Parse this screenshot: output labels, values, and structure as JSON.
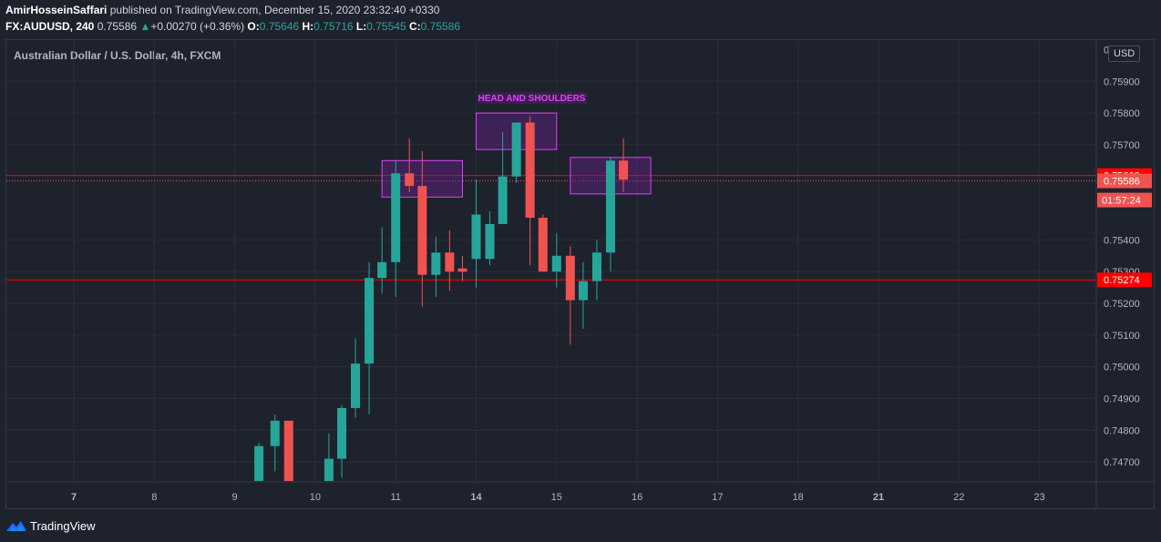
{
  "header": {
    "author": "AmirHosseinSaffari",
    "published_text": "published on TradingView.com, December 15, 2020 23:32:40 +0330",
    "symbol": "FX:AUDUSD, 240",
    "last": "0.75586",
    "change_arrow": "▲",
    "change": "+0.00270 (+0.36%)",
    "o_label": "O:",
    "o_value": "0.75646",
    "h_label": "H:",
    "h_value": "0.75716",
    "l_label": "L:",
    "l_value": "0.75545",
    "c_label": "C:",
    "c_value": "0.75586"
  },
  "chart_data": {
    "type": "candlestick",
    "title": "Australian Dollar / U.S. Dollar, 4h, FXCM",
    "currency": "USD",
    "ylim": [
      0.7464,
      0.7603
    ],
    "y_ticks": [
      "0.75900",
      "0.75800",
      "0.75700",
      "0.75400",
      "0.75300",
      "0.75200",
      "0.75100",
      "0.75000",
      "0.74900",
      "0.74800",
      "0.74700"
    ],
    "y_tick_partial": "0.76000",
    "x_ticks": [
      {
        "label": "7",
        "x": 7.0,
        "bold": true
      },
      {
        "label": "8",
        "x": 8.0,
        "bold": false
      },
      {
        "label": "9",
        "x": 9.0,
        "bold": false
      },
      {
        "label": "10",
        "x": 10.0,
        "bold": false
      },
      {
        "label": "11",
        "x": 11.0,
        "bold": false
      },
      {
        "label": "14",
        "x": 12.0,
        "bold": true
      },
      {
        "label": "15",
        "x": 13.0,
        "bold": false
      },
      {
        "label": "16",
        "x": 14.0,
        "bold": false
      },
      {
        "label": "17",
        "x": 15.0,
        "bold": false
      },
      {
        "label": "18",
        "x": 16.0,
        "bold": false
      },
      {
        "label": "21",
        "x": 17.0,
        "bold": true
      },
      {
        "label": "22",
        "x": 18.0,
        "bold": false
      },
      {
        "label": "23",
        "x": 19.0,
        "bold": false
      }
    ],
    "candles": [
      {
        "t": 9.3,
        "o": 0.7464,
        "h": 0.7476,
        "l": 0.7464,
        "c": 0.7475
      },
      {
        "t": 9.5,
        "o": 0.7475,
        "h": 0.7485,
        "l": 0.7467,
        "c": 0.7483
      },
      {
        "t": 9.67,
        "o": 0.7483,
        "h": 0.7483,
        "l": 0.7464,
        "c": 0.7464
      },
      {
        "t": 10.17,
        "o": 0.7464,
        "h": 0.7479,
        "l": 0.7464,
        "c": 0.7471
      },
      {
        "t": 10.33,
        "o": 0.7471,
        "h": 0.7488,
        "l": 0.7465,
        "c": 0.7487
      },
      {
        "t": 10.5,
        "o": 0.7487,
        "h": 0.7509,
        "l": 0.7484,
        "c": 0.7501
      },
      {
        "t": 10.67,
        "o": 0.7501,
        "h": 0.7533,
        "l": 0.7485,
        "c": 0.7528
      },
      {
        "t": 10.83,
        "o": 0.7528,
        "h": 0.7544,
        "l": 0.7523,
        "c": 0.7533
      },
      {
        "t": 11.0,
        "o": 0.7533,
        "h": 0.7565,
        "l": 0.7522,
        "c": 0.7561
      },
      {
        "t": 11.17,
        "o": 0.7561,
        "h": 0.7572,
        "l": 0.7555,
        "c": 0.7557
      },
      {
        "t": 11.33,
        "o": 0.7557,
        "h": 0.7568,
        "l": 0.7519,
        "c": 0.7529
      },
      {
        "t": 11.5,
        "o": 0.7529,
        "h": 0.7541,
        "l": 0.7522,
        "c": 0.7536
      },
      {
        "t": 11.67,
        "o": 0.7536,
        "h": 0.7543,
        "l": 0.7524,
        "c": 0.753
      },
      {
        "t": 11.83,
        "o": 0.7531,
        "h": 0.7535,
        "l": 0.7527,
        "c": 0.753
      },
      {
        "t": 12.0,
        "o": 0.7534,
        "h": 0.7559,
        "l": 0.7525,
        "c": 0.7548
      },
      {
        "t": 12.17,
        "o": 0.7534,
        "h": 0.7549,
        "l": 0.7532,
        "c": 0.7545
      },
      {
        "t": 12.33,
        "o": 0.7545,
        "h": 0.7574,
        "l": 0.7545,
        "c": 0.756
      },
      {
        "t": 12.5,
        "o": 0.756,
        "h": 0.7577,
        "l": 0.7558,
        "c": 0.7577
      },
      {
        "t": 12.67,
        "o": 0.7577,
        "h": 0.7579,
        "l": 0.7532,
        "c": 0.7547
      },
      {
        "t": 12.83,
        "o": 0.7547,
        "h": 0.7548,
        "l": 0.753,
        "c": 0.753
      },
      {
        "t": 13.0,
        "o": 0.753,
        "h": 0.7542,
        "l": 0.7525,
        "c": 0.7535
      },
      {
        "t": 13.17,
        "o": 0.7535,
        "h": 0.7538,
        "l": 0.7507,
        "c": 0.7521
      },
      {
        "t": 13.33,
        "o": 0.7521,
        "h": 0.7533,
        "l": 0.7512,
        "c": 0.7527
      },
      {
        "t": 13.5,
        "o": 0.7527,
        "h": 0.754,
        "l": 0.7521,
        "c": 0.7536
      },
      {
        "t": 13.67,
        "o": 0.7536,
        "h": 0.7566,
        "l": 0.753,
        "c": 0.7565
      },
      {
        "t": 13.83,
        "o": 0.7565,
        "h": 0.7572,
        "l": 0.7555,
        "c": 0.7559
      }
    ],
    "patterns": [
      {
        "label": "",
        "x0": 10.83,
        "x1": 11.83,
        "y0": 0.7565,
        "y1": 0.75535
      },
      {
        "label": "HEAD AND SHOULDERS",
        "x0": 12.0,
        "x1": 13.0,
        "y0": 0.758,
        "y1": 0.75685
      },
      {
        "label": "",
        "x0": 13.17,
        "x1": 14.17,
        "y0": 0.7566,
        "y1": 0.75545
      }
    ],
    "horizontal_lines": [
      {
        "value": 0.75603,
        "label": "0.75603",
        "color": "#ff0000",
        "style": "solid"
      },
      {
        "value": 0.75274,
        "label": "0.75274",
        "color": "#ff0000",
        "style": "solid"
      },
      {
        "value": 0.75586,
        "label": "0.75586",
        "color": "#ef5350",
        "style": "dotted"
      }
    ],
    "countdown": "01:57:24"
  },
  "colors": {
    "up": "#26a69a",
    "down": "#ef5350",
    "grid": "#2a2e39",
    "pattern_fill": "rgba(123,31,162,0.35)",
    "pattern_border": "#e040fb",
    "pattern_label": "#e040fb"
  },
  "footer": {
    "logo_text": "TradingView"
  }
}
